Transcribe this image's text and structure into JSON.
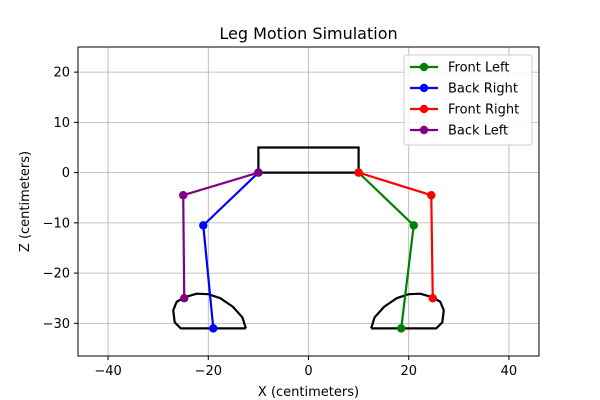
{
  "chart_data": {
    "type": "line",
    "title": "Leg Motion Simulation",
    "xlabel": "X (centimeters)",
    "ylabel": "Z (centimeters)",
    "xlim": [
      -46,
      46
    ],
    "ylim": [
      -36.5,
      25
    ],
    "xticks": [
      -40,
      -20,
      0,
      20,
      40
    ],
    "yticks": [
      -30,
      -20,
      -10,
      0,
      10,
      20
    ],
    "xtick_labels": [
      "−40",
      "−20",
      "0",
      "20",
      "40"
    ],
    "ytick_labels": [
      "−30",
      "−20",
      "−10",
      "0",
      "10",
      "20"
    ],
    "grid": true,
    "legend_position": "top-right",
    "series": [
      {
        "name": "Front Left",
        "color": "#008000",
        "x": [
          10,
          21,
          18.5
        ],
        "y": [
          0,
          -10.5,
          -31
        ]
      },
      {
        "name": "Back Right",
        "color": "#0000ff",
        "x": [
          -10,
          -21,
          -19
        ],
        "y": [
          0,
          -10.5,
          -31
        ]
      },
      {
        "name": "Front Right",
        "color": "#ff0000",
        "x": [
          10,
          24.5,
          24.8
        ],
        "y": [
          0,
          -4.5,
          -25
        ]
      },
      {
        "name": "Back Left",
        "color": "#800080",
        "x": [
          -10,
          -25,
          -24.8
        ],
        "y": [
          0,
          -4.5,
          -25
        ]
      }
    ],
    "body_outline": {
      "color": "#000000",
      "x": [
        -10,
        10,
        10,
        -10,
        -10
      ],
      "y": [
        0,
        0,
        5,
        5,
        0
      ]
    },
    "foot_paths": [
      {
        "color": "#000000",
        "x": [
          12.5,
          13.2,
          15.1,
          17.6,
          20,
          22.3,
          24.7,
          26.3,
          27,
          26.7,
          25.5,
          12.5
        ],
        "y": [
          -31,
          -28.8,
          -26.7,
          -25,
          -24.2,
          -24.1,
          -24.8,
          -25.7,
          -27.4,
          -29.8,
          -31,
          -31
        ]
      },
      {
        "color": "#000000",
        "x": [
          -12.5,
          -13.2,
          -15.1,
          -17.6,
          -20,
          -22.3,
          -24.7,
          -26.3,
          -27,
          -26.7,
          -25.5,
          -12.5
        ],
        "y": [
          -31,
          -28.8,
          -26.7,
          -25,
          -24.2,
          -24.1,
          -24.8,
          -25.7,
          -27.4,
          -29.8,
          -31,
          -31
        ]
      }
    ]
  }
}
